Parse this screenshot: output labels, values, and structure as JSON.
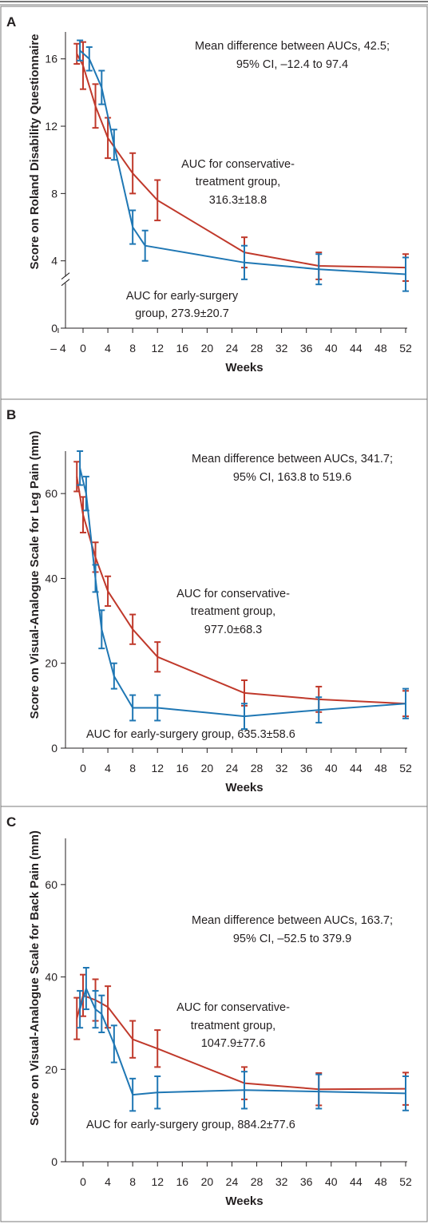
{
  "colors": {
    "conservative": "#c0392b",
    "surgery": "#1f77b4",
    "axis": "#231f20",
    "frame": "#7a7a7a"
  },
  "chart_data": [
    {
      "type": "line",
      "panel": "A",
      "xlabel": "Weeks",
      "ylabel": "Score on Roland Disability Questionnaire",
      "xlim": [
        -4,
        52
      ],
      "ylim": [
        0,
        17.6
      ],
      "y_axis_break": true,
      "xticks": [
        -4,
        0,
        4,
        8,
        12,
        16,
        20,
        24,
        28,
        32,
        36,
        40,
        44,
        48,
        52
      ],
      "xtick_labels": [
        "– 4",
        "0",
        "4",
        "8",
        "12",
        "16",
        "20",
        "24",
        "28",
        "32",
        "36",
        "40",
        "44",
        "48",
        "52"
      ],
      "yticks": [
        0,
        4,
        8,
        12,
        16
      ],
      "ytick_labels": [
        "0",
        "4",
        "8",
        "12",
        "16"
      ],
      "series": [
        {
          "key": "conservative",
          "x": [
            -1,
            0,
            2,
            4,
            8,
            12,
            26,
            38,
            52
          ],
          "y": [
            16.3,
            15.6,
            13.2,
            11.3,
            9.2,
            7.6,
            4.5,
            3.7,
            3.6
          ],
          "err": [
            0.6,
            1.4,
            1.3,
            1.2,
            1.2,
            1.2,
            0.9,
            0.8,
            0.8
          ]
        },
        {
          "key": "surgery",
          "x": [
            -0.5,
            1,
            3,
            5,
            8,
            10,
            26,
            38,
            52
          ],
          "y": [
            16.5,
            16.0,
            14.3,
            10.9,
            6.0,
            4.9,
            3.9,
            3.5,
            3.2
          ],
          "err": [
            0.6,
            0.7,
            1.0,
            0.9,
            1.0,
            0.9,
            1.0,
            0.9,
            1.0
          ]
        }
      ],
      "annotations": [
        {
          "lines": [
            "Mean difference between AUCs, 42.5;",
            "95% CI, –12.4 to 97.4"
          ]
        },
        {
          "lines": [
            "AUC for conservative-",
            "treatment group,",
            "316.3±18.8"
          ]
        },
        {
          "lines": [
            "AUC for early-surgery",
            "group, 273.9±20.7"
          ]
        }
      ]
    },
    {
      "type": "line",
      "panel": "B",
      "xlabel": "Weeks",
      "ylabel": "Score on Visual-Analogue Scale for Leg Pain (mm)",
      "xlim": [
        -4,
        52
      ],
      "ylim": [
        0,
        70
      ],
      "xticks": [
        0,
        4,
        8,
        12,
        16,
        20,
        24,
        28,
        32,
        36,
        40,
        44,
        48,
        52
      ],
      "xtick_labels": [
        "0",
        "4",
        "8",
        "12",
        "16",
        "20",
        "24",
        "28",
        "32",
        "36",
        "40",
        "44",
        "48",
        "52"
      ],
      "yticks": [
        0,
        20,
        40,
        60
      ],
      "ytick_labels": [
        "0",
        "20",
        "40",
        "60"
      ],
      "series": [
        {
          "key": "conservative",
          "x": [
            -1,
            0,
            2,
            4,
            8,
            12,
            26,
            38,
            52
          ],
          "y": [
            64,
            55,
            45,
            37,
            28,
            21.5,
            13,
            11.5,
            10.5
          ],
          "err": [
            3.5,
            4.2,
            3.5,
            3.5,
            3.5,
            3.5,
            3.0,
            3.0,
            3.0
          ]
        },
        {
          "key": "surgery",
          "x": [
            -0.5,
            0.5,
            2,
            3,
            5,
            8,
            12,
            26,
            38,
            52
          ],
          "y": [
            66,
            60,
            40,
            28,
            17,
            9.5,
            9.5,
            7.5,
            9.0,
            10.5
          ],
          "err": [
            4.0,
            4.0,
            3.2,
            4.5,
            3.0,
            3.0,
            3.0,
            3.0,
            3.0,
            3.5
          ]
        }
      ],
      "annotations": [
        {
          "lines": [
            "Mean difference between AUCs, 341.7;",
            "95% CI, 163.8 to 519.6"
          ]
        },
        {
          "lines": [
            "AUC for conservative-",
            "treatment group,",
            "977.0±68.3"
          ]
        },
        {
          "lines": [
            "AUC for early-surgery group, 635.3±58.6"
          ]
        }
      ]
    },
    {
      "type": "line",
      "panel": "C",
      "xlabel": "Weeks",
      "ylabel": "Score on Visual-Analogue Scale for Back Pain (mm)",
      "xlim": [
        -4,
        52
      ],
      "ylim": [
        0,
        70
      ],
      "xticks": [
        0,
        4,
        8,
        12,
        16,
        20,
        24,
        28,
        32,
        36,
        40,
        44,
        48,
        52
      ],
      "xtick_labels": [
        "0",
        "4",
        "8",
        "12",
        "16",
        "20",
        "24",
        "28",
        "32",
        "36",
        "40",
        "44",
        "48",
        "52"
      ],
      "yticks": [
        0,
        20,
        40,
        60
      ],
      "ytick_labels": [
        "0",
        "20",
        "40",
        "60"
      ],
      "series": [
        {
          "key": "conservative",
          "x": [
            -1,
            0,
            2,
            4,
            8,
            12,
            26,
            38,
            52
          ],
          "y": [
            31,
            36,
            35,
            33.5,
            26.5,
            24.5,
            17,
            15.7,
            15.8
          ],
          "err": [
            4.5,
            4.5,
            4.5,
            4.5,
            4.0,
            4.0,
            3.5,
            3.5,
            3.5
          ]
        },
        {
          "key": "surgery",
          "x": [
            -0.5,
            0.5,
            2,
            3,
            5,
            8,
            12,
            26,
            38,
            52
          ],
          "y": [
            33,
            37.5,
            33,
            32,
            25.5,
            14.5,
            15,
            15.5,
            15.2,
            14.8
          ],
          "err": [
            4.0,
            4.5,
            4.0,
            4.0,
            4.0,
            3.5,
            3.5,
            4.0,
            3.7,
            3.7
          ]
        }
      ],
      "annotations": [
        {
          "lines": [
            "Mean difference between AUCs, 163.7;",
            "95% CI, –52.5 to 379.9"
          ]
        },
        {
          "lines": [
            "AUC for conservative-",
            "treatment group,",
            "1047.9±77.6"
          ]
        },
        {
          "lines": [
            "AUC for early-surgery group, 884.2±77.6"
          ]
        }
      ]
    }
  ]
}
